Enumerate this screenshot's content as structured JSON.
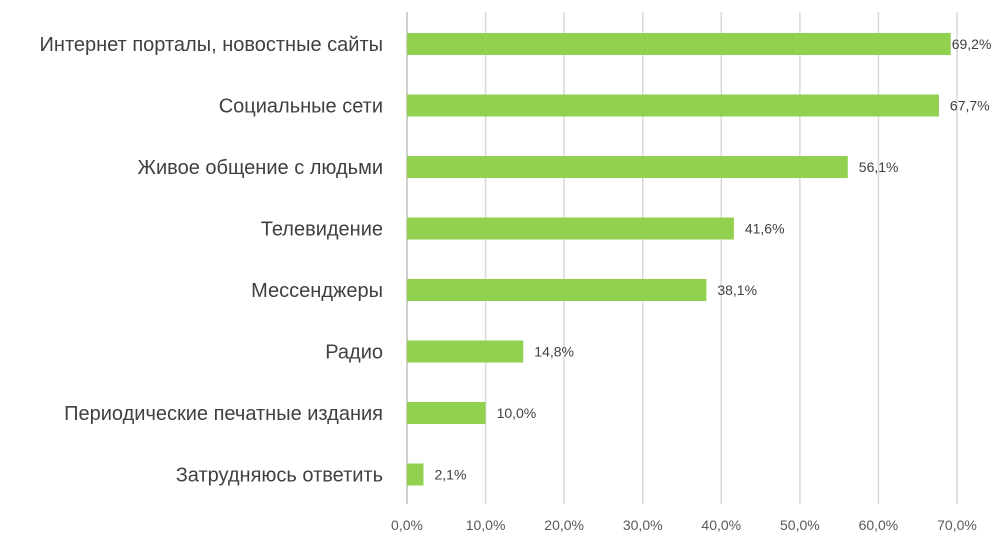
{
  "chart_data": {
    "type": "bar",
    "orientation": "horizontal",
    "categories": [
      "Интернет порталы, новостные сайты",
      "Социальные сети",
      "Живое общение с людьми",
      "Телевидение",
      "Мессенджеры",
      "Радио",
      "Периодические печатные издания",
      "Затрудняюсь ответить"
    ],
    "values": [
      69.2,
      67.7,
      56.1,
      41.6,
      38.1,
      14.8,
      10.0,
      2.1
    ],
    "value_labels": [
      "69,2%",
      "67,7%",
      "56,1%",
      "41,6%",
      "38,1%",
      "14,8%",
      "10,0%",
      "2,1%"
    ],
    "xlim": [
      0,
      70
    ],
    "x_ticks": [
      0,
      10,
      20,
      30,
      40,
      50,
      60,
      70
    ],
    "x_tick_labels": [
      "0,0%",
      "10,0%",
      "20,0%",
      "30,0%",
      "40,0%",
      "50,0%",
      "60,0%",
      "70,0%"
    ],
    "grid": true,
    "bar_color": "#92d050",
    "title": "",
    "xlabel": "",
    "ylabel": ""
  }
}
